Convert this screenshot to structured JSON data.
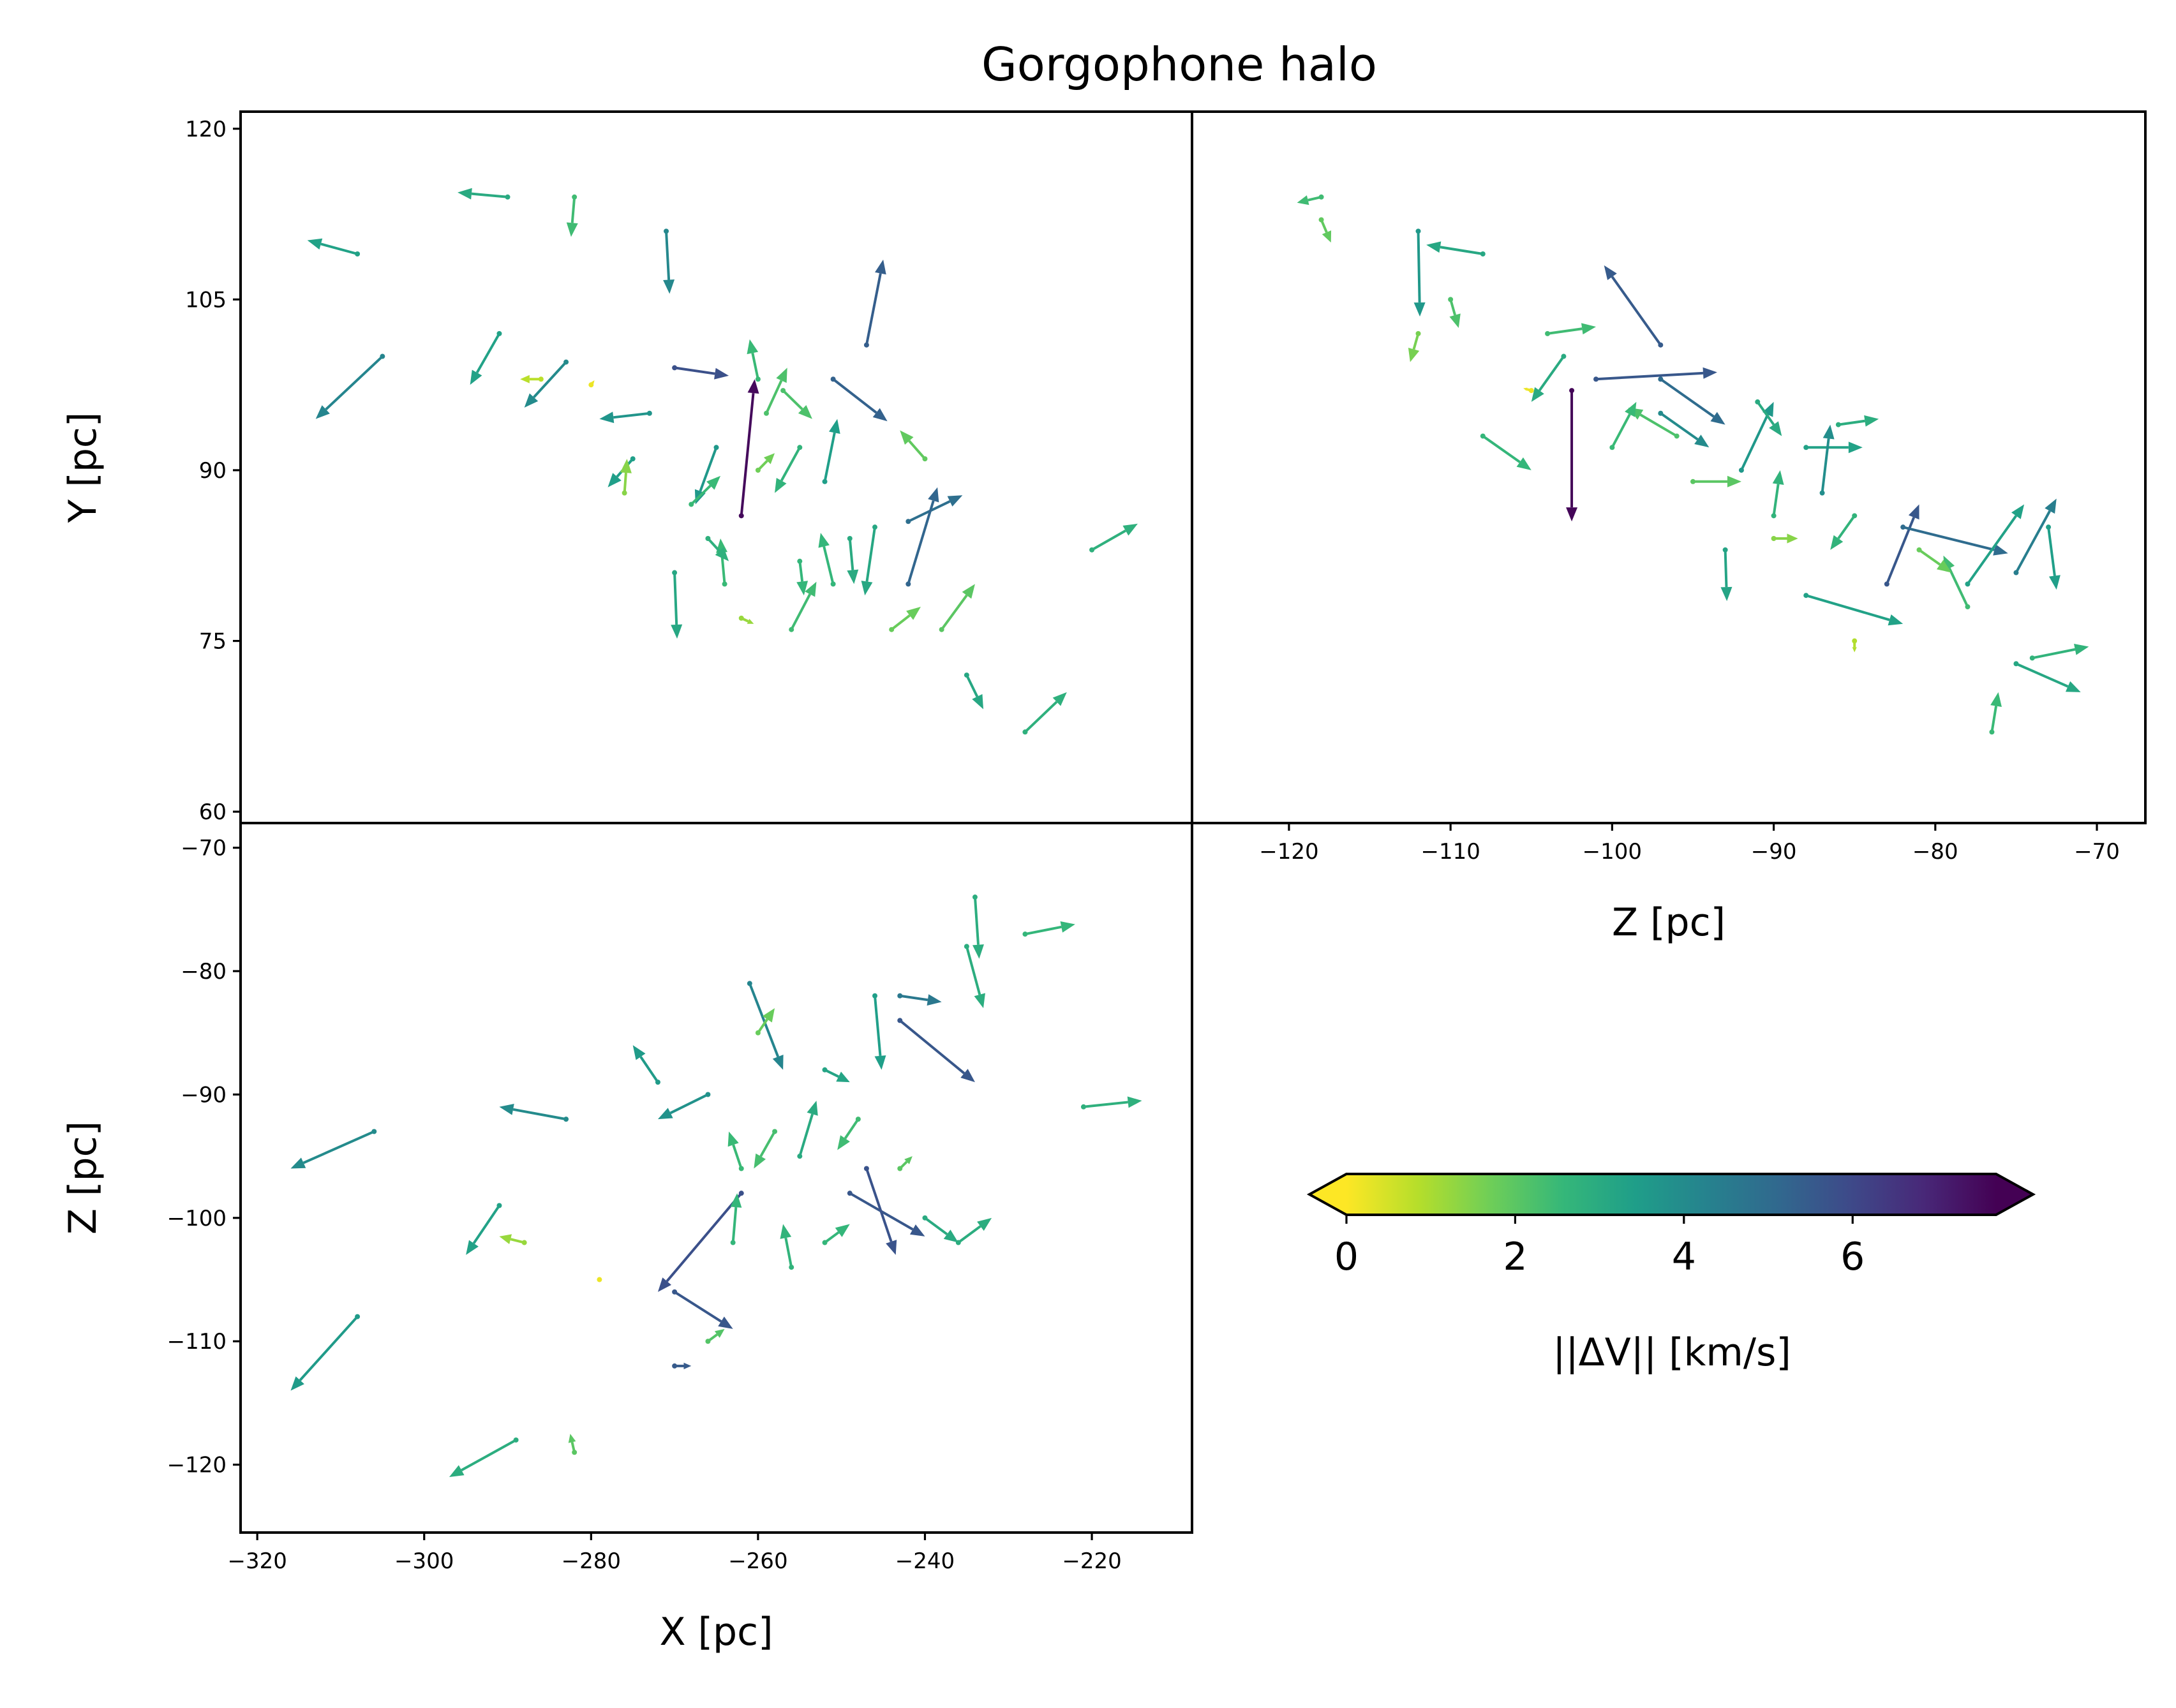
{
  "chart_data": {
    "type": "quiver",
    "title": "Gorgophone halo",
    "panels": [
      {
        "id": "xy",
        "xlabel": "",
        "ylabel": "Y [pc]",
        "xlim": [
          -322,
          -208
        ],
        "ylim": [
          59,
          121.5
        ],
        "xticks": [],
        "yticks": [
          "60",
          "75",
          "90",
          "105",
          "120"
        ],
        "arrows": [
          {
            "x": -308,
            "y": 109,
            "dx": -6,
            "dy": 1.2,
            "dv": 3.3
          },
          {
            "x": -290,
            "y": 114,
            "dx": -6,
            "dy": 0.4,
            "dv": 3.0
          },
          {
            "x": -282,
            "y": 114,
            "dx": -0.4,
            "dy": -3.5,
            "dv": 2.4
          },
          {
            "x": -305,
            "y": 100,
            "dx": -8,
            "dy": -5.5,
            "dv": 4.2
          },
          {
            "x": -291,
            "y": 102,
            "dx": -3.5,
            "dy": -4.5,
            "dv": 3.3
          },
          {
            "x": -283,
            "y": 99.5,
            "dx": -5,
            "dy": -4,
            "dv": 4.0
          },
          {
            "x": -271,
            "y": 111,
            "dx": 0.4,
            "dy": -5.5,
            "dv": 4.1
          },
          {
            "x": -247,
            "y": 101,
            "dx": 2.0,
            "dy": 7.5,
            "dv": 5.4
          },
          {
            "x": -270,
            "y": 99,
            "dx": 6.5,
            "dy": -0.7,
            "dv": 5.8
          },
          {
            "x": -262,
            "y": 86,
            "dx": 1.6,
            "dy": 12,
            "dv": 7.5
          },
          {
            "x": -273,
            "y": 95,
            "dx": -6,
            "dy": -0.5,
            "dv": 3.7
          },
          {
            "x": -251,
            "y": 98,
            "dx": 6.5,
            "dy": -3.7,
            "dv": 5.3
          },
          {
            "x": -242,
            "y": 85.5,
            "dx": 6.5,
            "dy": 2.3,
            "dv": 4.9
          },
          {
            "x": -242,
            "y": 80,
            "dx": 3.5,
            "dy": 8.5,
            "dv": 5.2
          },
          {
            "x": -270,
            "y": 81,
            "dx": 0.3,
            "dy": -5.8,
            "dv": 3.1
          },
          {
            "x": -220,
            "y": 83,
            "dx": 5.5,
            "dy": 2.3,
            "dv": 2.8
          },
          {
            "x": -228,
            "y": 67,
            "dx": 5,
            "dy": 3.5,
            "dv": 2.8
          },
          {
            "x": -235,
            "y": 72,
            "dx": 2,
            "dy": -3,
            "dv": 3.1
          },
          {
            "x": -256,
            "y": 76,
            "dx": 3,
            "dy": 4.2,
            "dv": 2.4
          },
          {
            "x": -251,
            "y": 80,
            "dx": -1.5,
            "dy": 4.5,
            "dv": 2.6
          },
          {
            "x": -246,
            "y": 85,
            "dx": -1.2,
            "dy": -6,
            "dv": 3.1
          },
          {
            "x": -252,
            "y": 89,
            "dx": 1.5,
            "dy": 5.5,
            "dv": 3.4
          },
          {
            "x": -255,
            "y": 92,
            "dx": -3,
            "dy": -4,
            "dv": 2.7
          },
          {
            "x": -259,
            "y": 95,
            "dx": 2.5,
            "dy": 4,
            "dv": 2.2
          },
          {
            "x": -265,
            "y": 92,
            "dx": -2.5,
            "dy": -5,
            "dv": 3.6
          },
          {
            "x": -268,
            "y": 87,
            "dx": 3.5,
            "dy": 2.5,
            "dv": 2.5
          },
          {
            "x": -275,
            "y": 91,
            "dx": -3,
            "dy": -2.5,
            "dv": 3.4
          },
          {
            "x": -276,
            "y": 88,
            "dx": 0.3,
            "dy": 3,
            "dv": 1.4
          },
          {
            "x": -240,
            "y": 91,
            "dx": -3,
            "dy": 2.5,
            "dv": 1.9
          },
          {
            "x": -238,
            "y": 76,
            "dx": 4,
            "dy": 4,
            "dv": 2.0
          },
          {
            "x": -244,
            "y": 76,
            "dx": 3.5,
            "dy": 2,
            "dv": 1.8
          },
          {
            "x": -260,
            "y": 98,
            "dx": -1,
            "dy": 3.5,
            "dv": 2.5
          },
          {
            "x": -257,
            "y": 97,
            "dx": 3.5,
            "dy": -2.5,
            "dv": 2.2
          },
          {
            "x": -264,
            "y": 80,
            "dx": -0.5,
            "dy": 4,
            "dv": 2.5
          },
          {
            "x": -249,
            "y": 84,
            "dx": 0.5,
            "dy": -4,
            "dv": 3.0
          },
          {
            "x": -286,
            "y": 98,
            "dx": -2.5,
            "dy": 0,
            "dv": 0.8
          },
          {
            "x": -280,
            "y": 97.5,
            "dx": 0.4,
            "dy": 0.4,
            "dv": 0.2
          },
          {
            "x": -266,
            "y": 84,
            "dx": 2.5,
            "dy": -2,
            "dv": 2.8
          },
          {
            "x": -262,
            "y": 77,
            "dx": 1.5,
            "dy": -0.5,
            "dv": 1.2
          },
          {
            "x": -255,
            "y": 82,
            "dx": 0.5,
            "dy": -3,
            "dv": 2.6
          },
          {
            "x": -260,
            "y": 90,
            "dx": 2,
            "dy": 1.5,
            "dv": 1.7
          }
        ]
      },
      {
        "id": "zy",
        "xlabel": "Z [pc]",
        "ylabel": "",
        "xlim": [
          -126,
          -67
        ],
        "ylim": [
          59,
          121.5
        ],
        "xticks": [
          "−120",
          "−110",
          "−100",
          "−90",
          "−80",
          "−70"
        ],
        "yticks": [],
        "arrows": [
          {
            "x": -118,
            "y": 114,
            "dx": -1.5,
            "dy": -0.5,
            "dv": 2.4
          },
          {
            "x": -118,
            "y": 112,
            "dx": 0.6,
            "dy": -2,
            "dv": 1.9
          },
          {
            "x": -112,
            "y": 111,
            "dx": 0.1,
            "dy": -7.5,
            "dv": 3.6
          },
          {
            "x": -108,
            "y": 109,
            "dx": -3.5,
            "dy": 0.8,
            "dv": 3.1
          },
          {
            "x": -97,
            "y": 101,
            "dx": -3.5,
            "dy": 7,
            "dv": 5.5
          },
          {
            "x": -102.5,
            "y": 97,
            "dx": 0,
            "dy": -11.5,
            "dv": 7.6
          },
          {
            "x": -101,
            "y": 98,
            "dx": 7.5,
            "dy": 0.6,
            "dv": 5.6
          },
          {
            "x": -97,
            "y": 98,
            "dx": 4,
            "dy": -4,
            "dv": 5.0
          },
          {
            "x": -97,
            "y": 95,
            "dx": 3,
            "dy": -3,
            "dv": 4.0
          },
          {
            "x": -92,
            "y": 90,
            "dx": 2,
            "dy": 6,
            "dv": 3.6
          },
          {
            "x": -88,
            "y": 92,
            "dx": 3.5,
            "dy": 0,
            "dv": 3.3
          },
          {
            "x": -87,
            "y": 88,
            "dx": 0.5,
            "dy": 6,
            "dv": 3.9
          },
          {
            "x": -83,
            "y": 80,
            "dx": 2,
            "dy": 7,
            "dv": 5.6
          },
          {
            "x": -82,
            "y": 85,
            "dx": 6.5,
            "dy": -2.3,
            "dv": 5.0
          },
          {
            "x": -75,
            "y": 81,
            "dx": 2.5,
            "dy": 6.5,
            "dv": 4.4
          },
          {
            "x": -73,
            "y": 85,
            "dx": 0.5,
            "dy": -5.5,
            "dv": 3.4
          },
          {
            "x": -88,
            "y": 79,
            "dx": 6,
            "dy": -2.5,
            "dv": 3.3
          },
          {
            "x": -78,
            "y": 80,
            "dx": 3.5,
            "dy": 7,
            "dv": 3.3
          },
          {
            "x": -78,
            "y": 78,
            "dx": -1.5,
            "dy": 4.5,
            "dv": 2.4
          },
          {
            "x": -75,
            "y": 73,
            "dx": 4,
            "dy": -2.5,
            "dv": 3.1
          },
          {
            "x": -74,
            "y": 73.5,
            "dx": 3.5,
            "dy": 1,
            "dv": 2.7
          },
          {
            "x": -76.5,
            "y": 67,
            "dx": 0.4,
            "dy": 3.5,
            "dv": 2.5
          },
          {
            "x": -93,
            "y": 83,
            "dx": 0.1,
            "dy": -4.5,
            "dv": 3.2
          },
          {
            "x": -103,
            "y": 100,
            "dx": -2,
            "dy": -4,
            "dv": 3.0
          },
          {
            "x": -96,
            "y": 93,
            "dx": -3,
            "dy": 2.5,
            "dv": 2.2
          },
          {
            "x": -100,
            "y": 92,
            "dx": 1.5,
            "dy": 4,
            "dv": 2.5
          },
          {
            "x": -105,
            "y": 97,
            "dx": -0.5,
            "dy": 0.2,
            "dv": 0.2
          },
          {
            "x": -90,
            "y": 86,
            "dx": 0.4,
            "dy": 4,
            "dv": 2.7
          },
          {
            "x": -85,
            "y": 86,
            "dx": -1.5,
            "dy": -3,
            "dv": 2.7
          },
          {
            "x": -85,
            "y": 75,
            "dx": 0,
            "dy": -1,
            "dv": 0.9
          },
          {
            "x": -90,
            "y": 84,
            "dx": 1.5,
            "dy": 0,
            "dv": 1.4
          },
          {
            "x": -95,
            "y": 89,
            "dx": 3,
            "dy": 0,
            "dv": 2.0
          },
          {
            "x": -108,
            "y": 93,
            "dx": 3,
            "dy": -3,
            "dv": 2.6
          },
          {
            "x": -104,
            "y": 102,
            "dx": 3,
            "dy": 0.6,
            "dv": 2.4
          },
          {
            "x": -110,
            "y": 105,
            "dx": 0.5,
            "dy": -2.5,
            "dv": 2.2
          },
          {
            "x": -112,
            "y": 102,
            "dx": -0.5,
            "dy": -2.5,
            "dv": 1.6
          },
          {
            "x": -81,
            "y": 83,
            "dx": 2,
            "dy": -2,
            "dv": 1.8
          },
          {
            "x": -86,
            "y": 94,
            "dx": 2.5,
            "dy": 0.5,
            "dv": 2.9
          },
          {
            "x": -91,
            "y": 96,
            "dx": 1.5,
            "dy": -3,
            "dv": 3.0
          }
        ]
      },
      {
        "id": "xz",
        "xlabel": "X [pc]",
        "ylabel": "Z [pc]",
        "xlim": [
          -322,
          -208
        ],
        "ylim": [
          -125.5,
          -68
        ],
        "xticks": [
          "−320",
          "−300",
          "−280",
          "−260",
          "−240",
          "−220"
        ],
        "yticks": [
          "−70",
          "−80",
          "−90",
          "−100",
          "−110",
          "−120"
        ],
        "arrows": [
          {
            "x": -306,
            "y": -93,
            "dx": -10,
            "dy": -3,
            "dv": 4.0
          },
          {
            "x": -308,
            "y": -108,
            "dx": -8,
            "dy": -6,
            "dv": 3.5
          },
          {
            "x": -289,
            "y": -118,
            "dx": -8,
            "dy": -3,
            "dv": 2.9
          },
          {
            "x": -283,
            "y": -92,
            "dx": -8,
            "dy": 1,
            "dv": 4.0
          },
          {
            "x": -291,
            "y": -99,
            "dx": -4,
            "dy": -4,
            "dv": 3.3
          },
          {
            "x": -270,
            "y": -106,
            "dx": 7,
            "dy": -3,
            "dv": 5.6
          },
          {
            "x": -262,
            "y": -98,
            "dx": -10,
            "dy": -8,
            "dv": 5.8
          },
          {
            "x": -249,
            "y": -98,
            "dx": 9,
            "dy": -3.5,
            "dv": 5.6
          },
          {
            "x": -247,
            "y": -96,
            "dx": 3.5,
            "dy": -7,
            "dv": 5.7
          },
          {
            "x": -243,
            "y": -84,
            "dx": 9,
            "dy": -5,
            "dv": 5.6
          },
          {
            "x": -243,
            "y": -82,
            "dx": 5,
            "dy": -0.5,
            "dv": 4.6
          },
          {
            "x": -261,
            "y": -81,
            "dx": 4,
            "dy": -7,
            "dv": 4.2
          },
          {
            "x": -246,
            "y": -82,
            "dx": 0.8,
            "dy": -6,
            "dv": 3.4
          },
          {
            "x": -235,
            "y": -78,
            "dx": 2,
            "dy": -5,
            "dv": 2.9
          },
          {
            "x": -234,
            "y": -74,
            "dx": 0.5,
            "dy": -5,
            "dv": 2.9
          },
          {
            "x": -221,
            "y": -91,
            "dx": 7,
            "dy": 0.5,
            "dv": 2.8
          },
          {
            "x": -228,
            "y": -77,
            "dx": 6,
            "dy": 0.8,
            "dv": 2.6
          },
          {
            "x": -270,
            "y": -112,
            "dx": 2,
            "dy": 0,
            "dv": 5.5
          },
          {
            "x": -279,
            "y": -105,
            "dx": 0.2,
            "dy": 0,
            "dv": 0.2
          },
          {
            "x": -288,
            "y": -102,
            "dx": -3,
            "dy": 0.5,
            "dv": 1.2
          },
          {
            "x": -282,
            "y": -119,
            "dx": -0.5,
            "dy": 1.5,
            "dv": 2.0
          },
          {
            "x": -262,
            "y": -96,
            "dx": -1.5,
            "dy": 3,
            "dv": 2.5
          },
          {
            "x": -255,
            "y": -95,
            "dx": 2,
            "dy": 4.5,
            "dv": 3.0
          },
          {
            "x": -258,
            "y": -93,
            "dx": -2.5,
            "dy": -3,
            "dv": 2.3
          },
          {
            "x": -252,
            "y": -88,
            "dx": 3,
            "dy": -1,
            "dv": 3.2
          },
          {
            "x": -266,
            "y": -90,
            "dx": -6,
            "dy": -2,
            "dv": 3.8
          },
          {
            "x": -272,
            "y": -89,
            "dx": -3,
            "dy": 3,
            "dv": 3.5
          },
          {
            "x": -252,
            "y": -102,
            "dx": 3,
            "dy": 1.5,
            "dv": 2.6
          },
          {
            "x": -240,
            "y": -100,
            "dx": 4,
            "dy": -2,
            "dv": 3.0
          },
          {
            "x": -236,
            "y": -102,
            "dx": 4,
            "dy": 2,
            "dv": 2.9
          },
          {
            "x": -263,
            "y": -102,
            "dx": 0.5,
            "dy": 4,
            "dv": 2.6
          },
          {
            "x": -256,
            "y": -104,
            "dx": -1,
            "dy": 3.5,
            "dv": 2.7
          },
          {
            "x": -248,
            "y": -92,
            "dx": -2.5,
            "dy": -2.5,
            "dv": 2.4
          },
          {
            "x": -243,
            "y": -96,
            "dx": 1.5,
            "dy": 1,
            "dv": 2.0
          },
          {
            "x": -260,
            "y": -85,
            "dx": 2,
            "dy": 2,
            "dv": 1.8
          },
          {
            "x": -266,
            "y": -110,
            "dx": 2,
            "dy": 1,
            "dv": 2.1
          }
        ]
      }
    ],
    "colorbar": {
      "label": "||ΔV|| [km/s]",
      "ticks": [
        "0",
        "2",
        "4",
        "6"
      ],
      "range": [
        0,
        7.7
      ],
      "colormap": "viridis_r",
      "extend": "both",
      "colors": [
        "#fde725",
        "#b5de2b",
        "#6ece58",
        "#35b779",
        "#1f9e89",
        "#26828e",
        "#31688e",
        "#3e4989",
        "#482878",
        "#440154"
      ]
    }
  }
}
